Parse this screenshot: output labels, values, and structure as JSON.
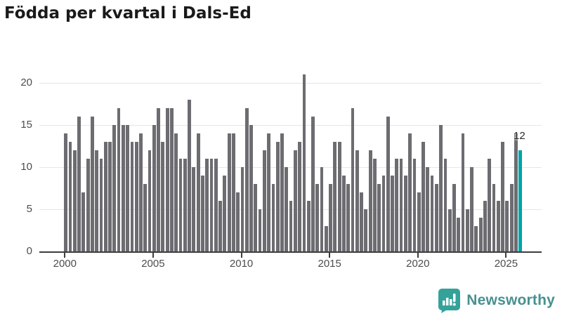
{
  "title": "Födda per kvartal i Dals-Ed",
  "chart_data": {
    "type": "bar",
    "title": "Födda per kvartal i Dals-Ed",
    "xlabel": "",
    "ylabel": "",
    "x_start": "2000-Q1",
    "x_frequency": "quarterly",
    "categories": [
      "2000-Q1",
      "2000-Q2",
      "2000-Q3",
      "2000-Q4",
      "2001-Q1",
      "2001-Q2",
      "2001-Q3",
      "2001-Q4",
      "2002-Q1",
      "2002-Q2",
      "2002-Q3",
      "2002-Q4",
      "2003-Q1",
      "2003-Q2",
      "2003-Q3",
      "2003-Q4",
      "2004-Q1",
      "2004-Q2",
      "2004-Q3",
      "2004-Q4",
      "2005-Q1",
      "2005-Q2",
      "2005-Q3",
      "2005-Q4",
      "2006-Q1",
      "2006-Q2",
      "2006-Q3",
      "2006-Q4",
      "2007-Q1",
      "2007-Q2",
      "2007-Q3",
      "2007-Q4",
      "2008-Q1",
      "2008-Q2",
      "2008-Q3",
      "2008-Q4",
      "2009-Q1",
      "2009-Q2",
      "2009-Q3",
      "2009-Q4",
      "2010-Q1",
      "2010-Q2",
      "2010-Q3",
      "2010-Q4",
      "2011-Q1",
      "2011-Q2",
      "2011-Q3",
      "2011-Q4",
      "2012-Q1",
      "2012-Q2",
      "2012-Q3",
      "2012-Q4",
      "2013-Q1",
      "2013-Q2",
      "2013-Q3",
      "2013-Q4",
      "2014-Q1",
      "2014-Q2",
      "2014-Q3",
      "2014-Q4",
      "2015-Q1",
      "2015-Q2",
      "2015-Q3",
      "2015-Q4",
      "2016-Q1",
      "2016-Q2",
      "2016-Q3",
      "2016-Q4",
      "2017-Q1",
      "2017-Q2",
      "2017-Q3",
      "2017-Q4",
      "2018-Q1",
      "2018-Q2",
      "2018-Q3",
      "2018-Q4",
      "2019-Q1",
      "2019-Q2",
      "2019-Q3",
      "2019-Q4",
      "2020-Q1",
      "2020-Q2",
      "2020-Q3",
      "2020-Q4",
      "2021-Q1",
      "2021-Q2",
      "2021-Q3",
      "2021-Q4",
      "2022-Q1",
      "2022-Q2",
      "2022-Q3",
      "2022-Q4",
      "2023-Q1",
      "2023-Q2",
      "2023-Q3",
      "2023-Q4",
      "2024-Q1",
      "2024-Q2",
      "2024-Q3",
      "2024-Q4",
      "2025-Q1",
      "2025-Q2",
      "2025-Q3",
      "2025-Q4"
    ],
    "series": [
      {
        "name": "Födda",
        "values": [
          14,
          13,
          12,
          16,
          7,
          11,
          16,
          12,
          11,
          13,
          13,
          15,
          17,
          15,
          15,
          13,
          13,
          14,
          8,
          12,
          15,
          17,
          13,
          17,
          17,
          14,
          11,
          11,
          18,
          10,
          14,
          9,
          11,
          11,
          11,
          6,
          9,
          14,
          14,
          7,
          10,
          17,
          15,
          8,
          5,
          12,
          14,
          8,
          13,
          14,
          10,
          6,
          12,
          13,
          21,
          6,
          16,
          8,
          10,
          3,
          8,
          13,
          13,
          9,
          8,
          17,
          12,
          7,
          5,
          12,
          11,
          8,
          9,
          16,
          9,
          11,
          11,
          9,
          14,
          11,
          7,
          13,
          10,
          9,
          8,
          15,
          11,
          5,
          8,
          4,
          14,
          5,
          10,
          3,
          4,
          6,
          11,
          8,
          6,
          13,
          6,
          8,
          14,
          12
        ]
      }
    ],
    "x_tick_labels": [
      "2000",
      "2005",
      "2010",
      "2015",
      "2020",
      "2025"
    ],
    "y_ticks": [
      0,
      5,
      10,
      15,
      20
    ],
    "ylim": [
      0,
      21
    ],
    "grid": true,
    "legend": false,
    "bar_color": "#6c6c71",
    "highlight": {
      "index": 103,
      "label": "12",
      "color": "#00a5a5"
    }
  },
  "branding": {
    "logo_text": "Newsworthy",
    "icon": "newsworthy-chart-bubble-icon",
    "icon_color": "#35a29a",
    "text_color": "#47918f"
  },
  "colors": {
    "background": "#ffffff",
    "title_text": "#1a1a1a",
    "axis_text": "#4d4d4d",
    "axis_line": "#3d3d3d",
    "gridline": "#e6e6e6"
  }
}
